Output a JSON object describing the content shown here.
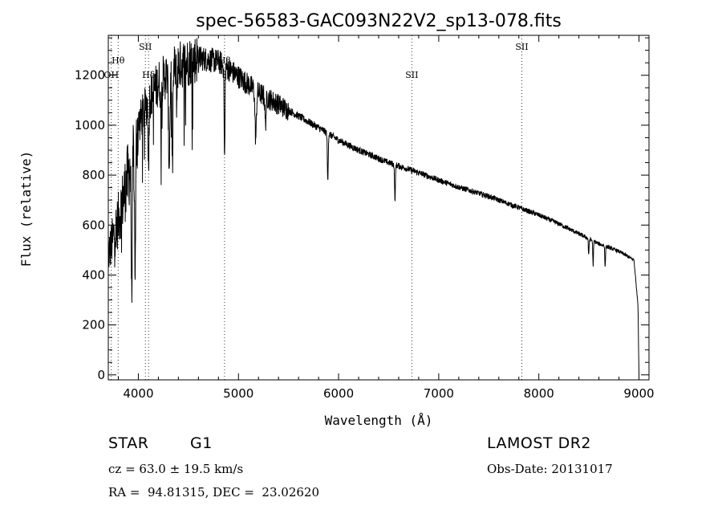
{
  "chart_data": {
    "type": "line",
    "title": "spec-56583-GAC093N22V2_sp13-078.fits",
    "xlabel": "Wavelength (Å)",
    "ylabel": "Flux (relative)",
    "xlim": [
      3700,
      9100
    ],
    "ylim": [
      -20,
      1360
    ],
    "x_ticks": [
      4000,
      5000,
      6000,
      7000,
      8000,
      9000
    ],
    "y_ticks": [
      0,
      200,
      400,
      600,
      800,
      1000,
      1200
    ],
    "grid": false,
    "line_markers": [
      {
        "label": "Hθ",
        "wavelength": 3798,
        "level": "upper"
      },
      {
        "label": "OH",
        "wavelength": 3730,
        "level": "lower"
      },
      {
        "label": "SII",
        "wavelength": 4070,
        "level": "top"
      },
      {
        "label": "Hδ",
        "wavelength": 4102,
        "level": "lower"
      },
      {
        "label": "Hβ",
        "wavelength": 4861,
        "level": "upper"
      },
      {
        "label": "SII",
        "wavelength": 6731,
        "level": "lower"
      },
      {
        "label": "SII",
        "wavelength": 7830,
        "level": "top"
      }
    ],
    "continuum": [
      [
        3700,
        480
      ],
      [
        3800,
        620
      ],
      [
        3900,
        800
      ],
      [
        4000,
        1000
      ],
      [
        4100,
        1100
      ],
      [
        4200,
        1170
      ],
      [
        4400,
        1240
      ],
      [
        4600,
        1270
      ],
      [
        4800,
        1255
      ],
      [
        5000,
        1195
      ],
      [
        5200,
        1130
      ],
      [
        5500,
        1060
      ],
      [
        5800,
        990
      ],
      [
        6000,
        940
      ],
      [
        6200,
        900
      ],
      [
        6500,
        850
      ],
      [
        6800,
        810
      ],
      [
        7000,
        780
      ],
      [
        7200,
        752
      ],
      [
        7500,
        715
      ],
      [
        7800,
        670
      ],
      [
        8000,
        640
      ],
      [
        8200,
        605
      ],
      [
        8400,
        565
      ],
      [
        8600,
        525
      ],
      [
        8800,
        495
      ],
      [
        8950,
        460
      ],
      [
        8990,
        280
      ],
      [
        9000,
        0
      ]
    ],
    "absorption": [
      [
        3934,
        0.62,
        8
      ],
      [
        3968,
        0.55,
        8
      ],
      [
        4102,
        0.25,
        6
      ],
      [
        4226,
        0.15,
        6
      ],
      [
        4308,
        0.3,
        10
      ],
      [
        4340,
        0.3,
        7
      ],
      [
        4384,
        0.12,
        5
      ],
      [
        4861,
        0.3,
        6
      ],
      [
        5172,
        0.17,
        10
      ],
      [
        5270,
        0.1,
        8
      ],
      [
        5892,
        0.2,
        6
      ],
      [
        6563,
        0.17,
        6
      ],
      [
        8498,
        0.12,
        5
      ],
      [
        8542,
        0.18,
        5
      ],
      [
        8662,
        0.16,
        5
      ]
    ]
  },
  "footer": {
    "object_class": "STAR",
    "subclass": "G1",
    "survey": "LAMOST DR2",
    "cz": "cz = 63.0 ± 19.5 km/s",
    "obs_date": "Obs-Date: 20131017",
    "coords": "RA =  94.81315, DEC =  23.02620"
  }
}
